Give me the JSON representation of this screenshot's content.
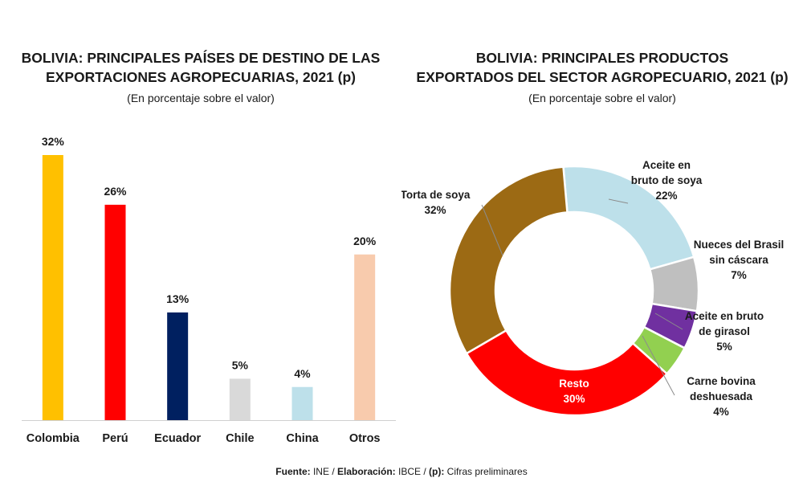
{
  "chart_data": [
    {
      "type": "bar",
      "title_lines": [
        "BOLIVIA: PRINCIPALES PAÍSES DE DESTINO DE LAS",
        "EXPORTACIONES AGROPECUARIAS, 2021 (p)"
      ],
      "subtitle": "(En porcentaje sobre el valor)",
      "categories": [
        "Colombia",
        "Perú",
        "Ecuador",
        "Chile",
        "China",
        "Otros"
      ],
      "values": [
        32,
        26,
        13,
        5,
        4,
        20
      ],
      "value_labels": [
        "32%",
        "26%",
        "13%",
        "5%",
        "4%",
        "20%"
      ],
      "colors": [
        "#FFC000",
        "#FF0000",
        "#002060",
        "#D9D9D9",
        "#BDE0EA",
        "#F8CBAD"
      ],
      "ylim": [
        0,
        32
      ]
    },
    {
      "type": "pie",
      "style": "donut",
      "title_lines": [
        "BOLIVIA: PRINCIPALES PRODUCTOS",
        "EXPORTADOS DEL SECTOR AGROPECUARIO, 2021 (p)"
      ],
      "subtitle": "(En porcentaje sobre el valor)",
      "slices": [
        {
          "label_lines": [
            "Aceite en",
            "bruto de soya",
            "22%"
          ],
          "value": 22,
          "color": "#BDE0EA"
        },
        {
          "label_lines": [
            "Nueces del Brasil",
            "sin cáscara",
            "7%"
          ],
          "value": 7,
          "color": "#BFBFBF"
        },
        {
          "label_lines": [
            "Aceite en bruto",
            "de girasol",
            "5%"
          ],
          "value": 5,
          "color": "#7030A0"
        },
        {
          "label_lines": [
            "Carne bovina",
            "deshuesada",
            "4%"
          ],
          "value": 4,
          "color": "#92D050"
        },
        {
          "label_lines": [
            "Resto",
            "30%"
          ],
          "value": 30,
          "color": "#FF0000"
        },
        {
          "label_lines": [
            "Torta de soya",
            "32%"
          ],
          "value": 32,
          "color": "#9C6A14"
        }
      ]
    }
  ],
  "footer": {
    "fuente_label": "Fuente:",
    "fuente_value": " INE / ",
    "elaboracion_label": "Elaboración:",
    "elaboracion_value": " IBCE / ",
    "p_label": "(p):",
    "p_value": " Cifras preliminares"
  }
}
